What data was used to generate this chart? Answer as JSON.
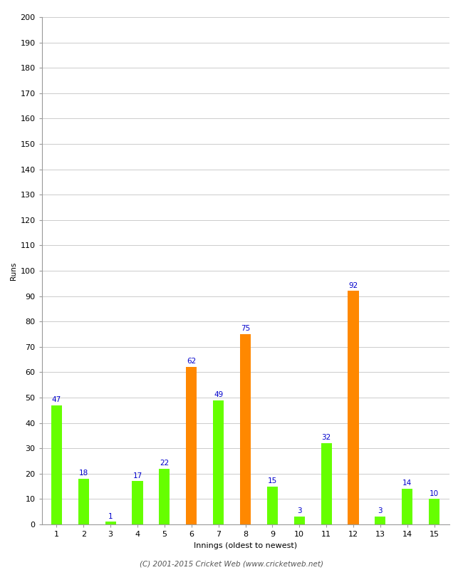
{
  "xlabel": "Innings (oldest to newest)",
  "ylabel": "Runs",
  "categories": [
    "1",
    "2",
    "3",
    "4",
    "5",
    "6",
    "7",
    "8",
    "9",
    "10",
    "11",
    "12",
    "13",
    "14",
    "15"
  ],
  "values": [
    47,
    18,
    1,
    17,
    22,
    62,
    49,
    75,
    15,
    3,
    32,
    92,
    3,
    14,
    10
  ],
  "colors": [
    "#66ff00",
    "#66ff00",
    "#66ff00",
    "#66ff00",
    "#66ff00",
    "#ff8800",
    "#66ff00",
    "#ff8800",
    "#66ff00",
    "#66ff00",
    "#66ff00",
    "#ff8800",
    "#66ff00",
    "#66ff00",
    "#66ff00"
  ],
  "ylim": [
    0,
    200
  ],
  "yticks": [
    0,
    10,
    20,
    30,
    40,
    50,
    60,
    70,
    80,
    90,
    100,
    110,
    120,
    130,
    140,
    150,
    160,
    170,
    180,
    190,
    200
  ],
  "label_color": "#0000cc",
  "label_fontsize": 7.5,
  "axis_fontsize": 8,
  "ylabel_fontsize": 7.5,
  "background_color": "#ffffff",
  "grid_color": "#cccccc",
  "footer": "(C) 2001-2015 Cricket Web (www.cricketweb.net)",
  "bar_width": 0.4
}
